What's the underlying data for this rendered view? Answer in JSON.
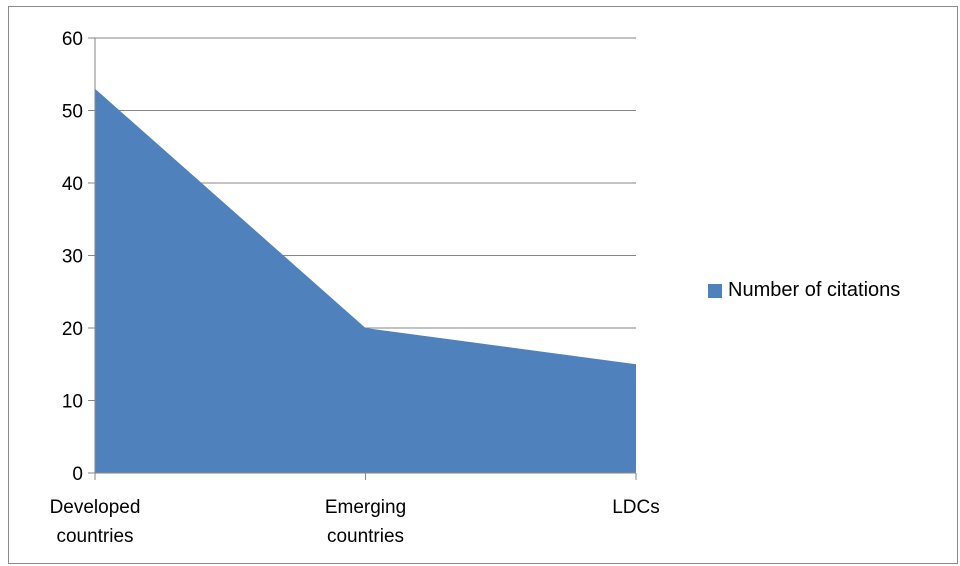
{
  "chart_data": {
    "type": "area",
    "categories": [
      "Developed countries",
      "Emerging countries",
      "LDCs"
    ],
    "category_label_lines": [
      [
        "Developed",
        "countries"
      ],
      [
        "Emerging",
        "countries"
      ],
      [
        "LDCs"
      ]
    ],
    "series": [
      {
        "name": "Number of citations",
        "values": [
          53,
          20,
          15
        ],
        "color": "#4f81bd"
      }
    ],
    "ylim": [
      0,
      60
    ],
    "yticks": [
      "0",
      "10",
      "20",
      "30",
      "40",
      "50",
      "60"
    ],
    "title": "",
    "xlabel": "",
    "ylabel": "",
    "grid": "horizontal",
    "legend_position": "right"
  }
}
